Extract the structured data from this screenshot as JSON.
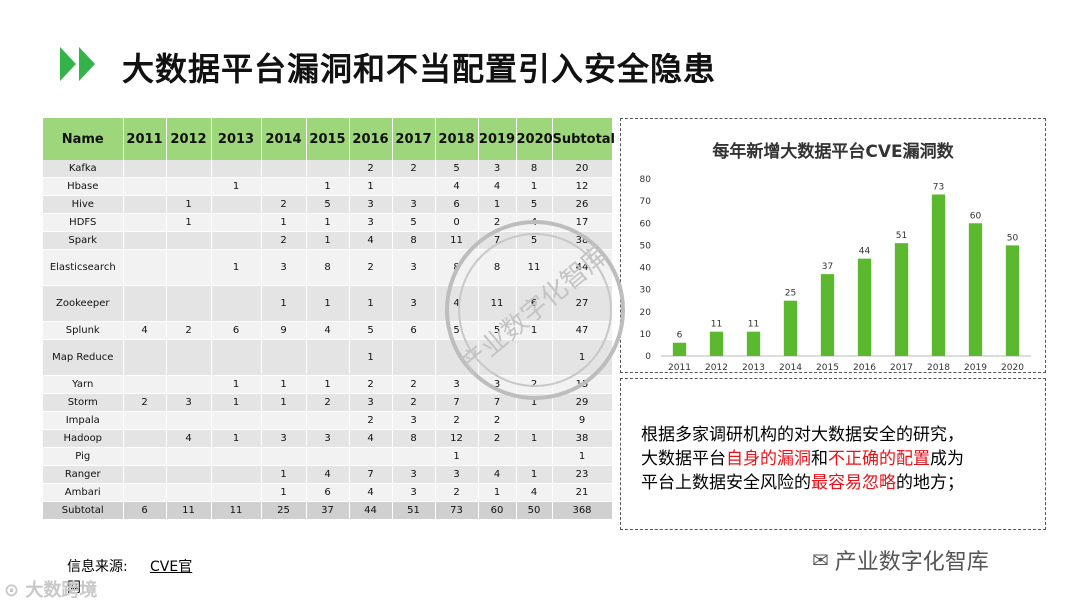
{
  "title": "大数据平台漏洞和不当配置引入安全隐患",
  "table": {
    "headers": [
      "Name",
      "2011",
      "2012",
      "2013",
      "2014",
      "2015",
      "2016",
      "2017",
      "2018",
      "2019",
      "2020",
      "Subtotal"
    ],
    "rows": [
      [
        "Kafka",
        "",
        "",
        "",
        "",
        "",
        "2",
        "2",
        "5",
        "3",
        "8",
        "20"
      ],
      [
        "Hbase",
        "",
        "",
        "1",
        "",
        "1",
        "1",
        "",
        "4",
        "4",
        "1",
        "12"
      ],
      [
        "Hive",
        "",
        "1",
        "",
        "2",
        "5",
        "3",
        "3",
        "6",
        "1",
        "5",
        "26"
      ],
      [
        "HDFS",
        "",
        "1",
        "",
        "1",
        "1",
        "3",
        "5",
        "0",
        "2",
        "4",
        "17"
      ],
      [
        "Spark",
        "",
        "",
        "",
        "2",
        "1",
        "4",
        "8",
        "11",
        "7",
        "5",
        "38"
      ],
      [
        "Elasticsearch",
        "",
        "",
        "1",
        "3",
        "8",
        "2",
        "3",
        "8",
        "8",
        "11",
        "44"
      ],
      [
        "Zookeeper",
        "",
        "",
        "",
        "1",
        "1",
        "1",
        "3",
        "4",
        "11",
        "6",
        "27"
      ],
      [
        "Splunk",
        "4",
        "2",
        "6",
        "9",
        "4",
        "5",
        "6",
        "5",
        "5",
        "1",
        "47"
      ],
      [
        "Map Reduce",
        "",
        "",
        "",
        "",
        "",
        "1",
        "",
        "",
        "",
        "",
        "1"
      ],
      [
        "Yarn",
        "",
        "",
        "1",
        "1",
        "1",
        "2",
        "2",
        "3",
        "3",
        "2",
        "15"
      ],
      [
        "Storm",
        "2",
        "3",
        "1",
        "1",
        "2",
        "3",
        "2",
        "7",
        "7",
        "1",
        "29"
      ],
      [
        "Impala",
        "",
        "",
        "",
        "",
        "",
        "2",
        "3",
        "2",
        "2",
        "",
        "9"
      ],
      [
        "Hadoop",
        "",
        "4",
        "1",
        "3",
        "3",
        "4",
        "8",
        "12",
        "2",
        "1",
        "38"
      ],
      [
        "Pig",
        "",
        "",
        "",
        "",
        "",
        "",
        "",
        "1",
        "",
        "",
        "1"
      ],
      [
        "Ranger",
        "",
        "",
        "",
        "1",
        "4",
        "7",
        "3",
        "3",
        "4",
        "1",
        "23"
      ],
      [
        "Ambari",
        "",
        "",
        "",
        "1",
        "6",
        "4",
        "3",
        "2",
        "1",
        "4",
        "21"
      ],
      [
        "Subtotal",
        "6",
        "11",
        "11",
        "25",
        "37",
        "44",
        "51",
        "73",
        "60",
        "50",
        "368"
      ]
    ]
  },
  "chart_data": {
    "type": "bar",
    "title": "每年新增大数据平台CVE漏洞数",
    "categories": [
      "2011",
      "2012",
      "2013",
      "2014",
      "2015",
      "2016",
      "2017",
      "2018",
      "2019",
      "2020"
    ],
    "values": [
      6,
      11,
      11,
      25,
      37,
      44,
      51,
      73,
      60,
      50
    ],
    "ylim": [
      0,
      80
    ],
    "yticks": [
      0,
      10,
      20,
      30,
      40,
      50,
      60,
      70,
      80
    ],
    "grid": false,
    "bar_color": "#5cb82e"
  },
  "note": {
    "line1": "根据多家调研机构的对大数据安全的研究，",
    "line2_a": "大数据平台",
    "line2_red1": "自身的漏洞",
    "line2_b": "和",
    "line2_red2": "不正确的配置",
    "line2_c": "成为",
    "line3_a": "平台上数据安全风险的",
    "line3_red": "最容易忽略",
    "line3_b": "的地方；"
  },
  "source": {
    "label": "信息来源:",
    "link": "CVE官",
    "cont": "网"
  },
  "watermark_bl": "大数跨境",
  "brand": "产业数字化智库",
  "stamp_text": "产业数字化智库",
  "colors": {
    "header_green": "#9ed77b",
    "title_arrow": "#33b34a",
    "highlight_red": "#e8121a"
  }
}
